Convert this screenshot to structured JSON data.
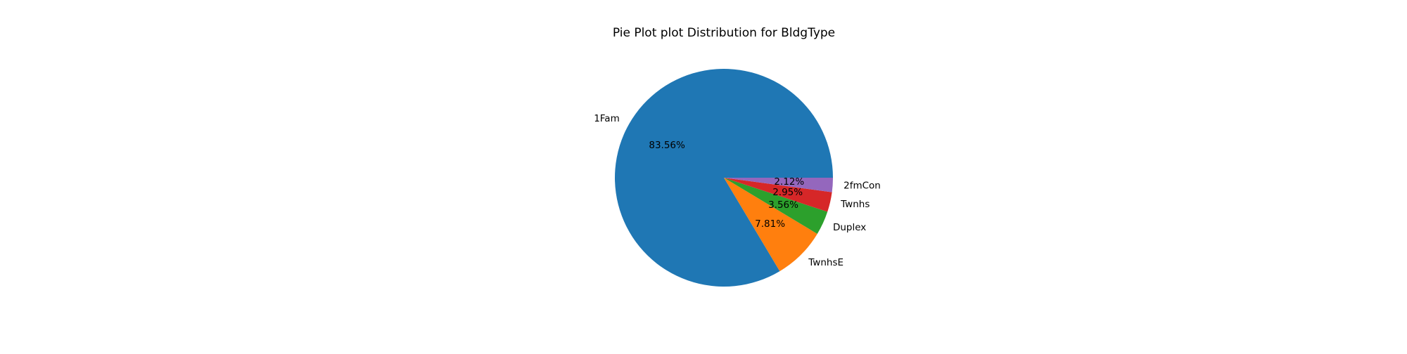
{
  "chart_data": {
    "type": "pie",
    "title": "Pie Plot plot Distribution for BldgType",
    "slices": [
      {
        "label": "1Fam",
        "value": 83.56,
        "pct_text": "83.56%",
        "color": "#1f77b4"
      },
      {
        "label": "TwnhsE",
        "value": 7.81,
        "pct_text": "7.81%",
        "color": "#ff7f0e"
      },
      {
        "label": "Duplex",
        "value": 3.56,
        "pct_text": "3.56%",
        "color": "#2ca02c"
      },
      {
        "label": "Twnhs",
        "value": 2.95,
        "pct_text": "2.95%",
        "color": "#d62728"
      },
      {
        "label": "2fmCon",
        "value": 2.12,
        "pct_text": "2.12%",
        "color": "#9467bd"
      }
    ],
    "start_angle_deg": 0,
    "direction": "counterclockwise",
    "legend": "none"
  }
}
